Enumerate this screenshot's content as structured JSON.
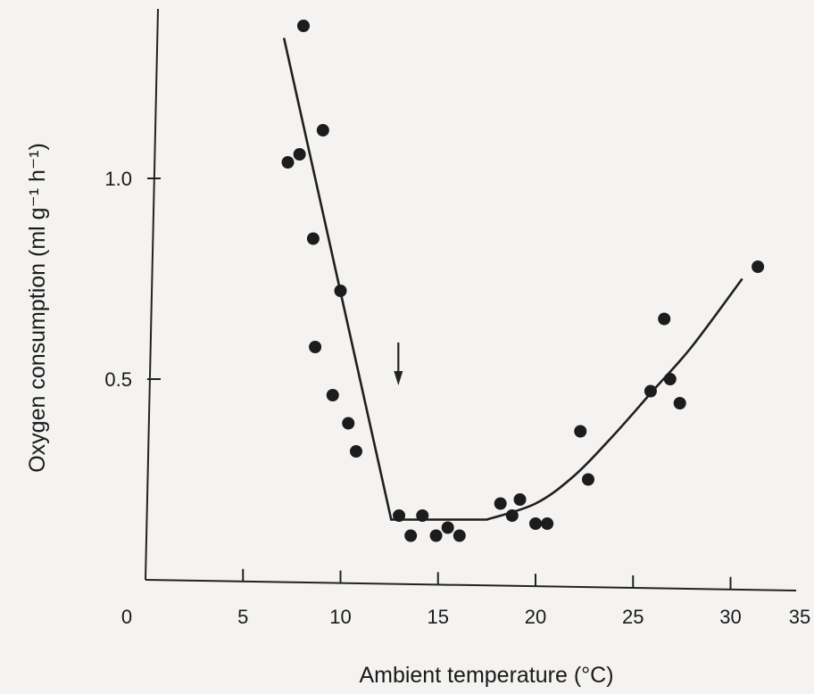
{
  "chart_data": {
    "type": "scatter",
    "title": "",
    "xlabel": "Ambient temperature (°C)",
    "ylabel": "Oxygen consumption (ml g⁻¹ h⁻¹)",
    "xlim": [
      0,
      35
    ],
    "ylim": [
      0,
      1.4
    ],
    "x_ticks": [
      0,
      5,
      10,
      15,
      20,
      25,
      30,
      35
    ],
    "x_tick_labels": [
      "0",
      "5",
      "10",
      "15",
      "20",
      "25",
      "30",
      "35"
    ],
    "y_ticks": [
      0.5,
      1.0
    ],
    "y_tick_labels": [
      "0.5",
      "1.0"
    ],
    "grid": false,
    "legend": "none",
    "series": [
      {
        "points": [
          [
            7.3,
            1.04
          ],
          [
            7.9,
            1.06
          ],
          [
            8.1,
            1.38
          ],
          [
            8.6,
            0.85
          ],
          [
            8.7,
            0.58
          ],
          [
            9.1,
            1.12
          ],
          [
            9.6,
            0.46
          ],
          [
            10.0,
            0.72
          ],
          [
            10.4,
            0.39
          ],
          [
            10.8,
            0.32
          ],
          [
            13.0,
            0.16
          ],
          [
            13.6,
            0.11
          ],
          [
            14.2,
            0.16
          ],
          [
            14.9,
            0.11
          ],
          [
            15.5,
            0.13
          ],
          [
            16.1,
            0.11
          ],
          [
            18.2,
            0.19
          ],
          [
            18.8,
            0.16
          ],
          [
            19.2,
            0.2
          ],
          [
            20.0,
            0.14
          ],
          [
            20.6,
            0.14
          ],
          [
            22.3,
            0.37
          ],
          [
            22.7,
            0.25
          ],
          [
            25.9,
            0.47
          ],
          [
            26.6,
            0.65
          ],
          [
            26.9,
            0.5
          ],
          [
            27.4,
            0.44
          ],
          [
            31.4,
            0.78
          ]
        ]
      }
    ],
    "fit_line": {
      "segments": [
        {
          "shape": "linear",
          "points": [
            [
              7.1,
              1.35
            ],
            [
              12.6,
              0.15
            ]
          ]
        },
        {
          "shape": "linear",
          "points": [
            [
              12.6,
              0.15
            ],
            [
              17.5,
              0.15
            ]
          ]
        },
        {
          "shape": "curve",
          "points": [
            [
              17.5,
              0.15
            ],
            [
              20,
              0.19
            ],
            [
              22,
              0.26
            ],
            [
              24,
              0.36
            ],
            [
              26,
              0.47
            ],
            [
              28,
              0.58
            ],
            [
              30.6,
              0.75
            ]
          ]
        }
      ]
    },
    "annotations": [
      {
        "type": "arrow",
        "direction": "down",
        "points_to": [
          12.6,
          0.15
        ]
      }
    ]
  }
}
